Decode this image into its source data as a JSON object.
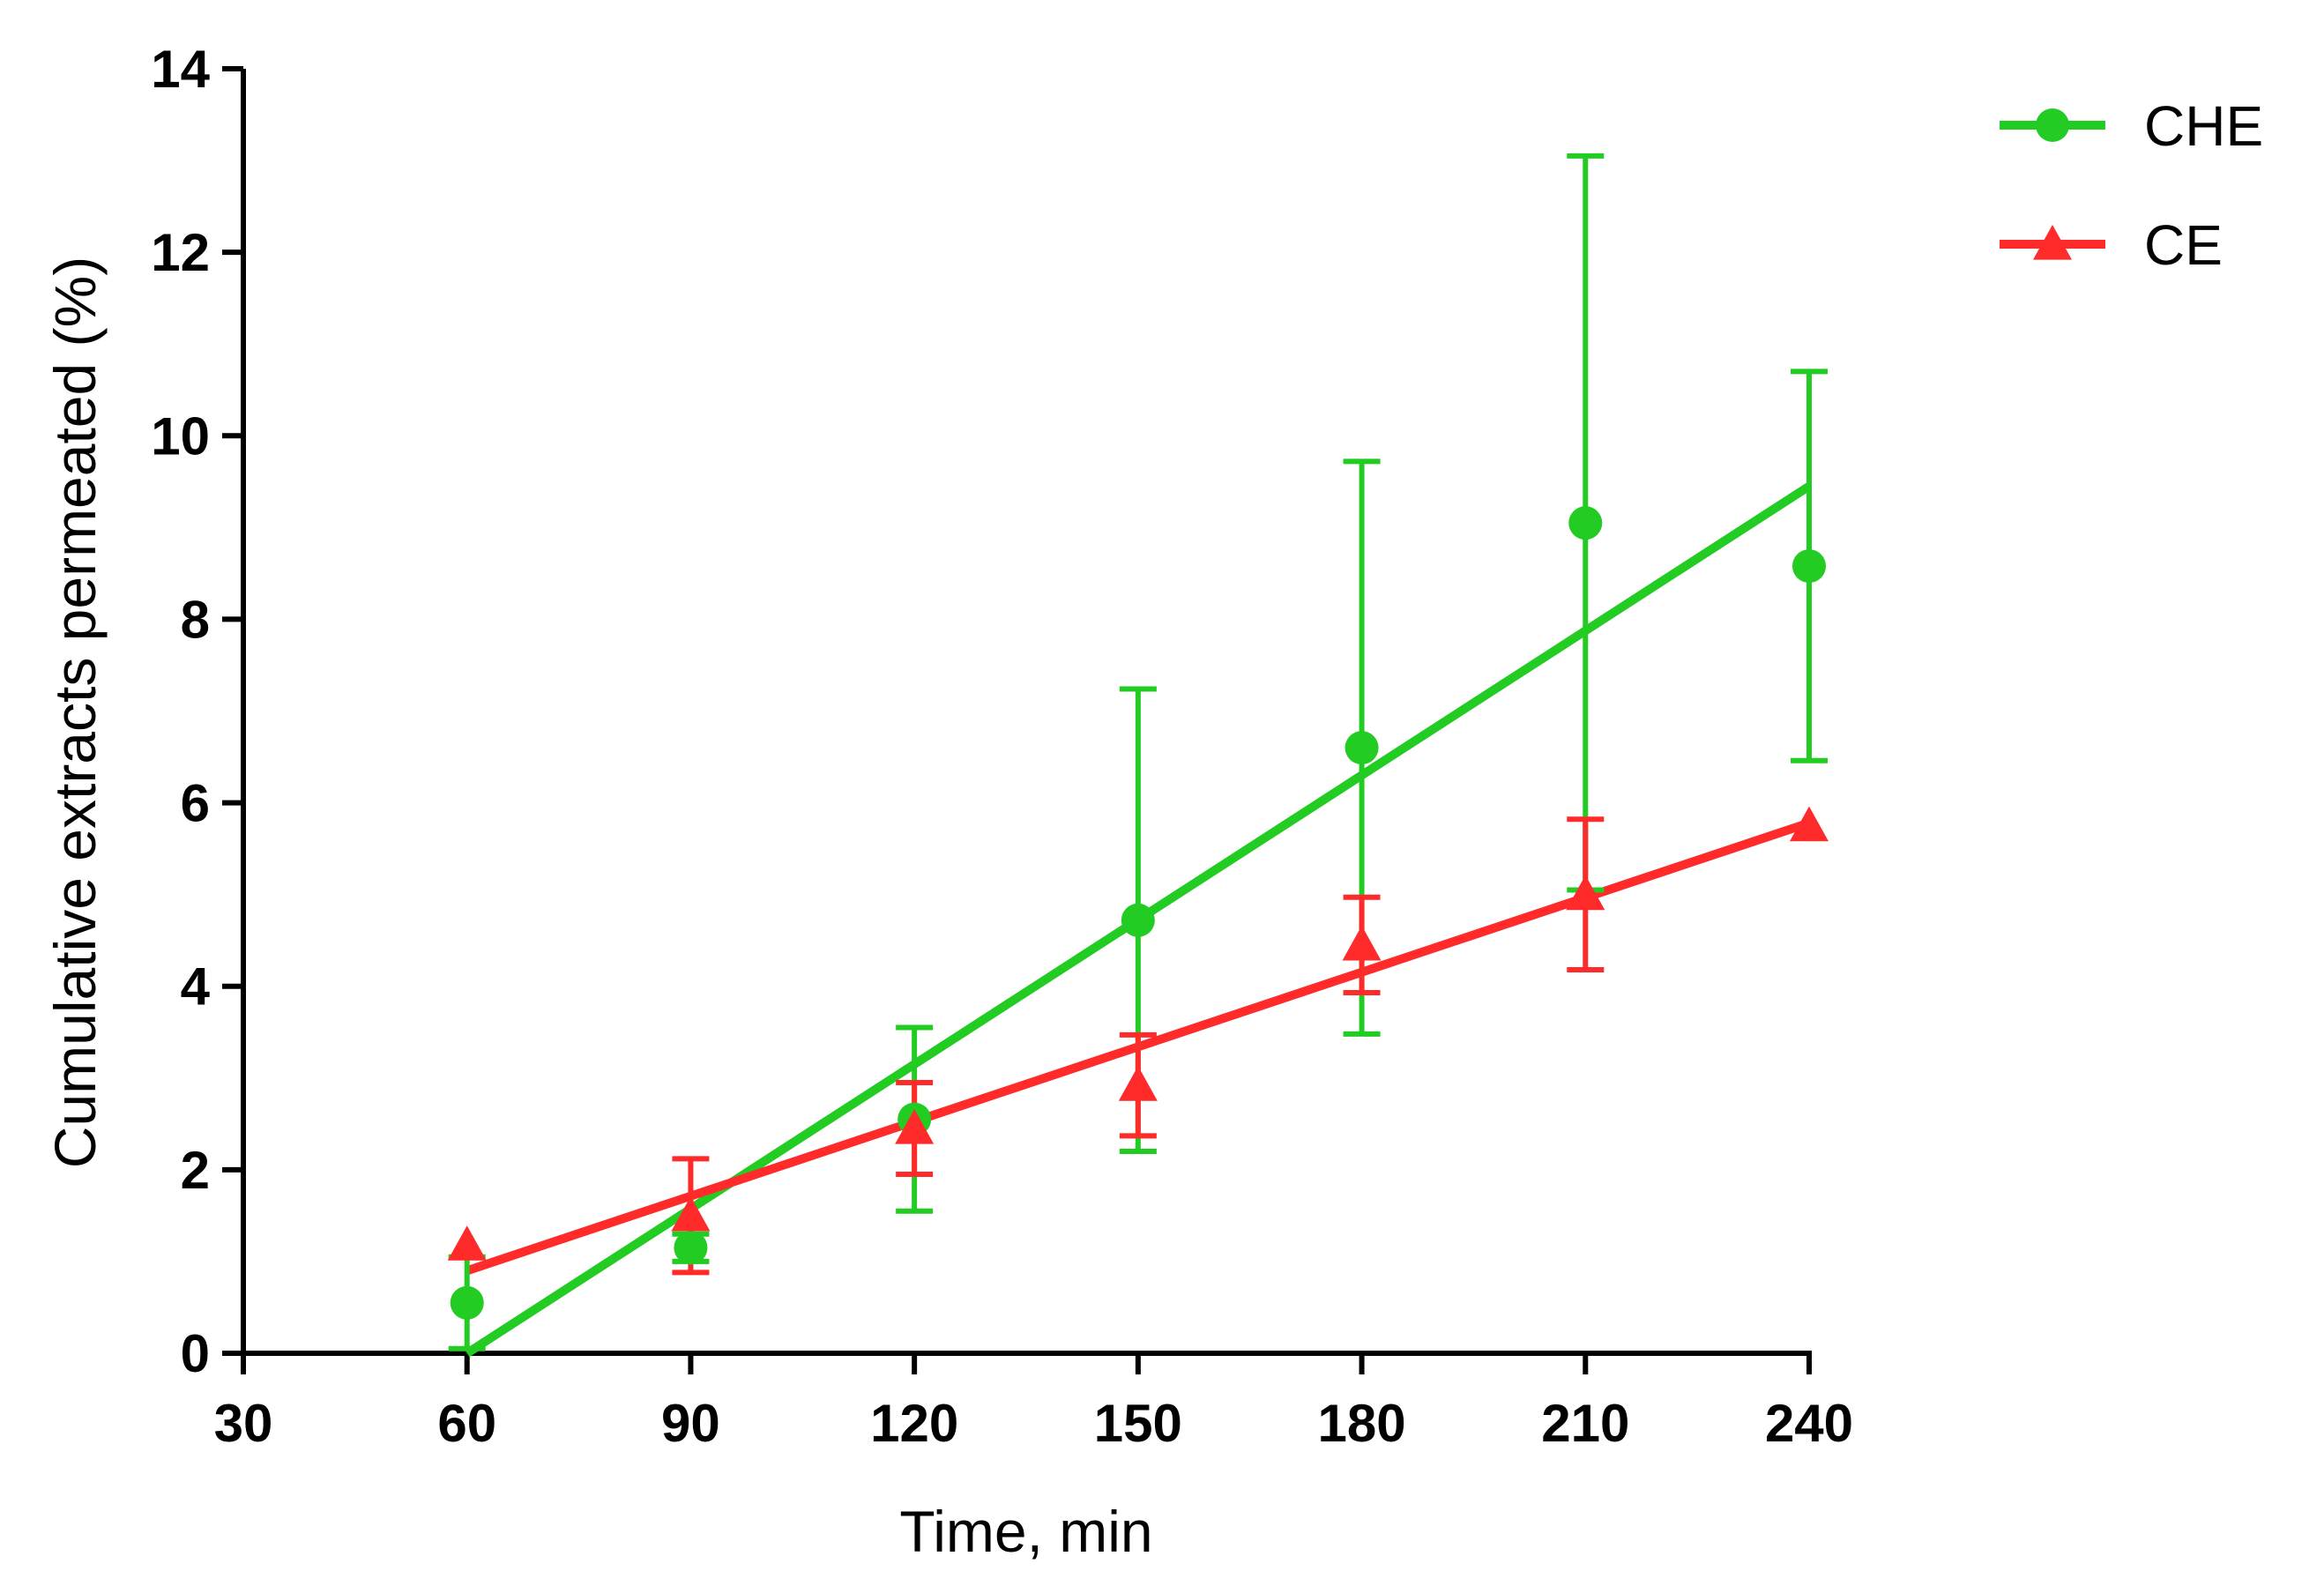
{
  "chart_data": {
    "type": "line",
    "title": "",
    "xlabel": "Time, min",
    "ylabel": "Cumulative extracts permeated (%)",
    "xlim": [
      30,
      240
    ],
    "ylim": [
      0,
      14
    ],
    "xticks": [
      30,
      60,
      90,
      120,
      150,
      180,
      210,
      240
    ],
    "yticks": [
      0,
      2,
      4,
      6,
      8,
      10,
      12,
      14
    ],
    "grid": false,
    "legend_position": "top-right",
    "series": [
      {
        "name": "CHE",
        "color": "#22cc22",
        "marker": "circle",
        "x": [
          60,
          90,
          120,
          150,
          180,
          210,
          240
        ],
        "values": [
          0.55,
          1.15,
          2.55,
          4.72,
          6.6,
          9.05,
          8.58
        ],
        "error": [
          0.5,
          0.15,
          1.0,
          2.52,
          3.12,
          4.0,
          2.12
        ],
        "fit": {
          "x": [
            60,
            240
          ],
          "y": [
            0.0,
            9.45
          ]
        }
      },
      {
        "name": "CE",
        "color": "#ff2a2a",
        "marker": "triangle",
        "x": [
          60,
          90,
          120,
          150,
          180,
          210,
          240
        ],
        "values": [
          1.18,
          1.5,
          2.45,
          2.92,
          4.45,
          5.0,
          5.75
        ],
        "error": [
          0.0,
          0.62,
          0.5,
          0.55,
          0.52,
          0.82,
          0.0
        ],
        "fit": {
          "x": [
            60,
            240
          ],
          "y": [
            0.9,
            5.78
          ]
        }
      }
    ]
  }
}
